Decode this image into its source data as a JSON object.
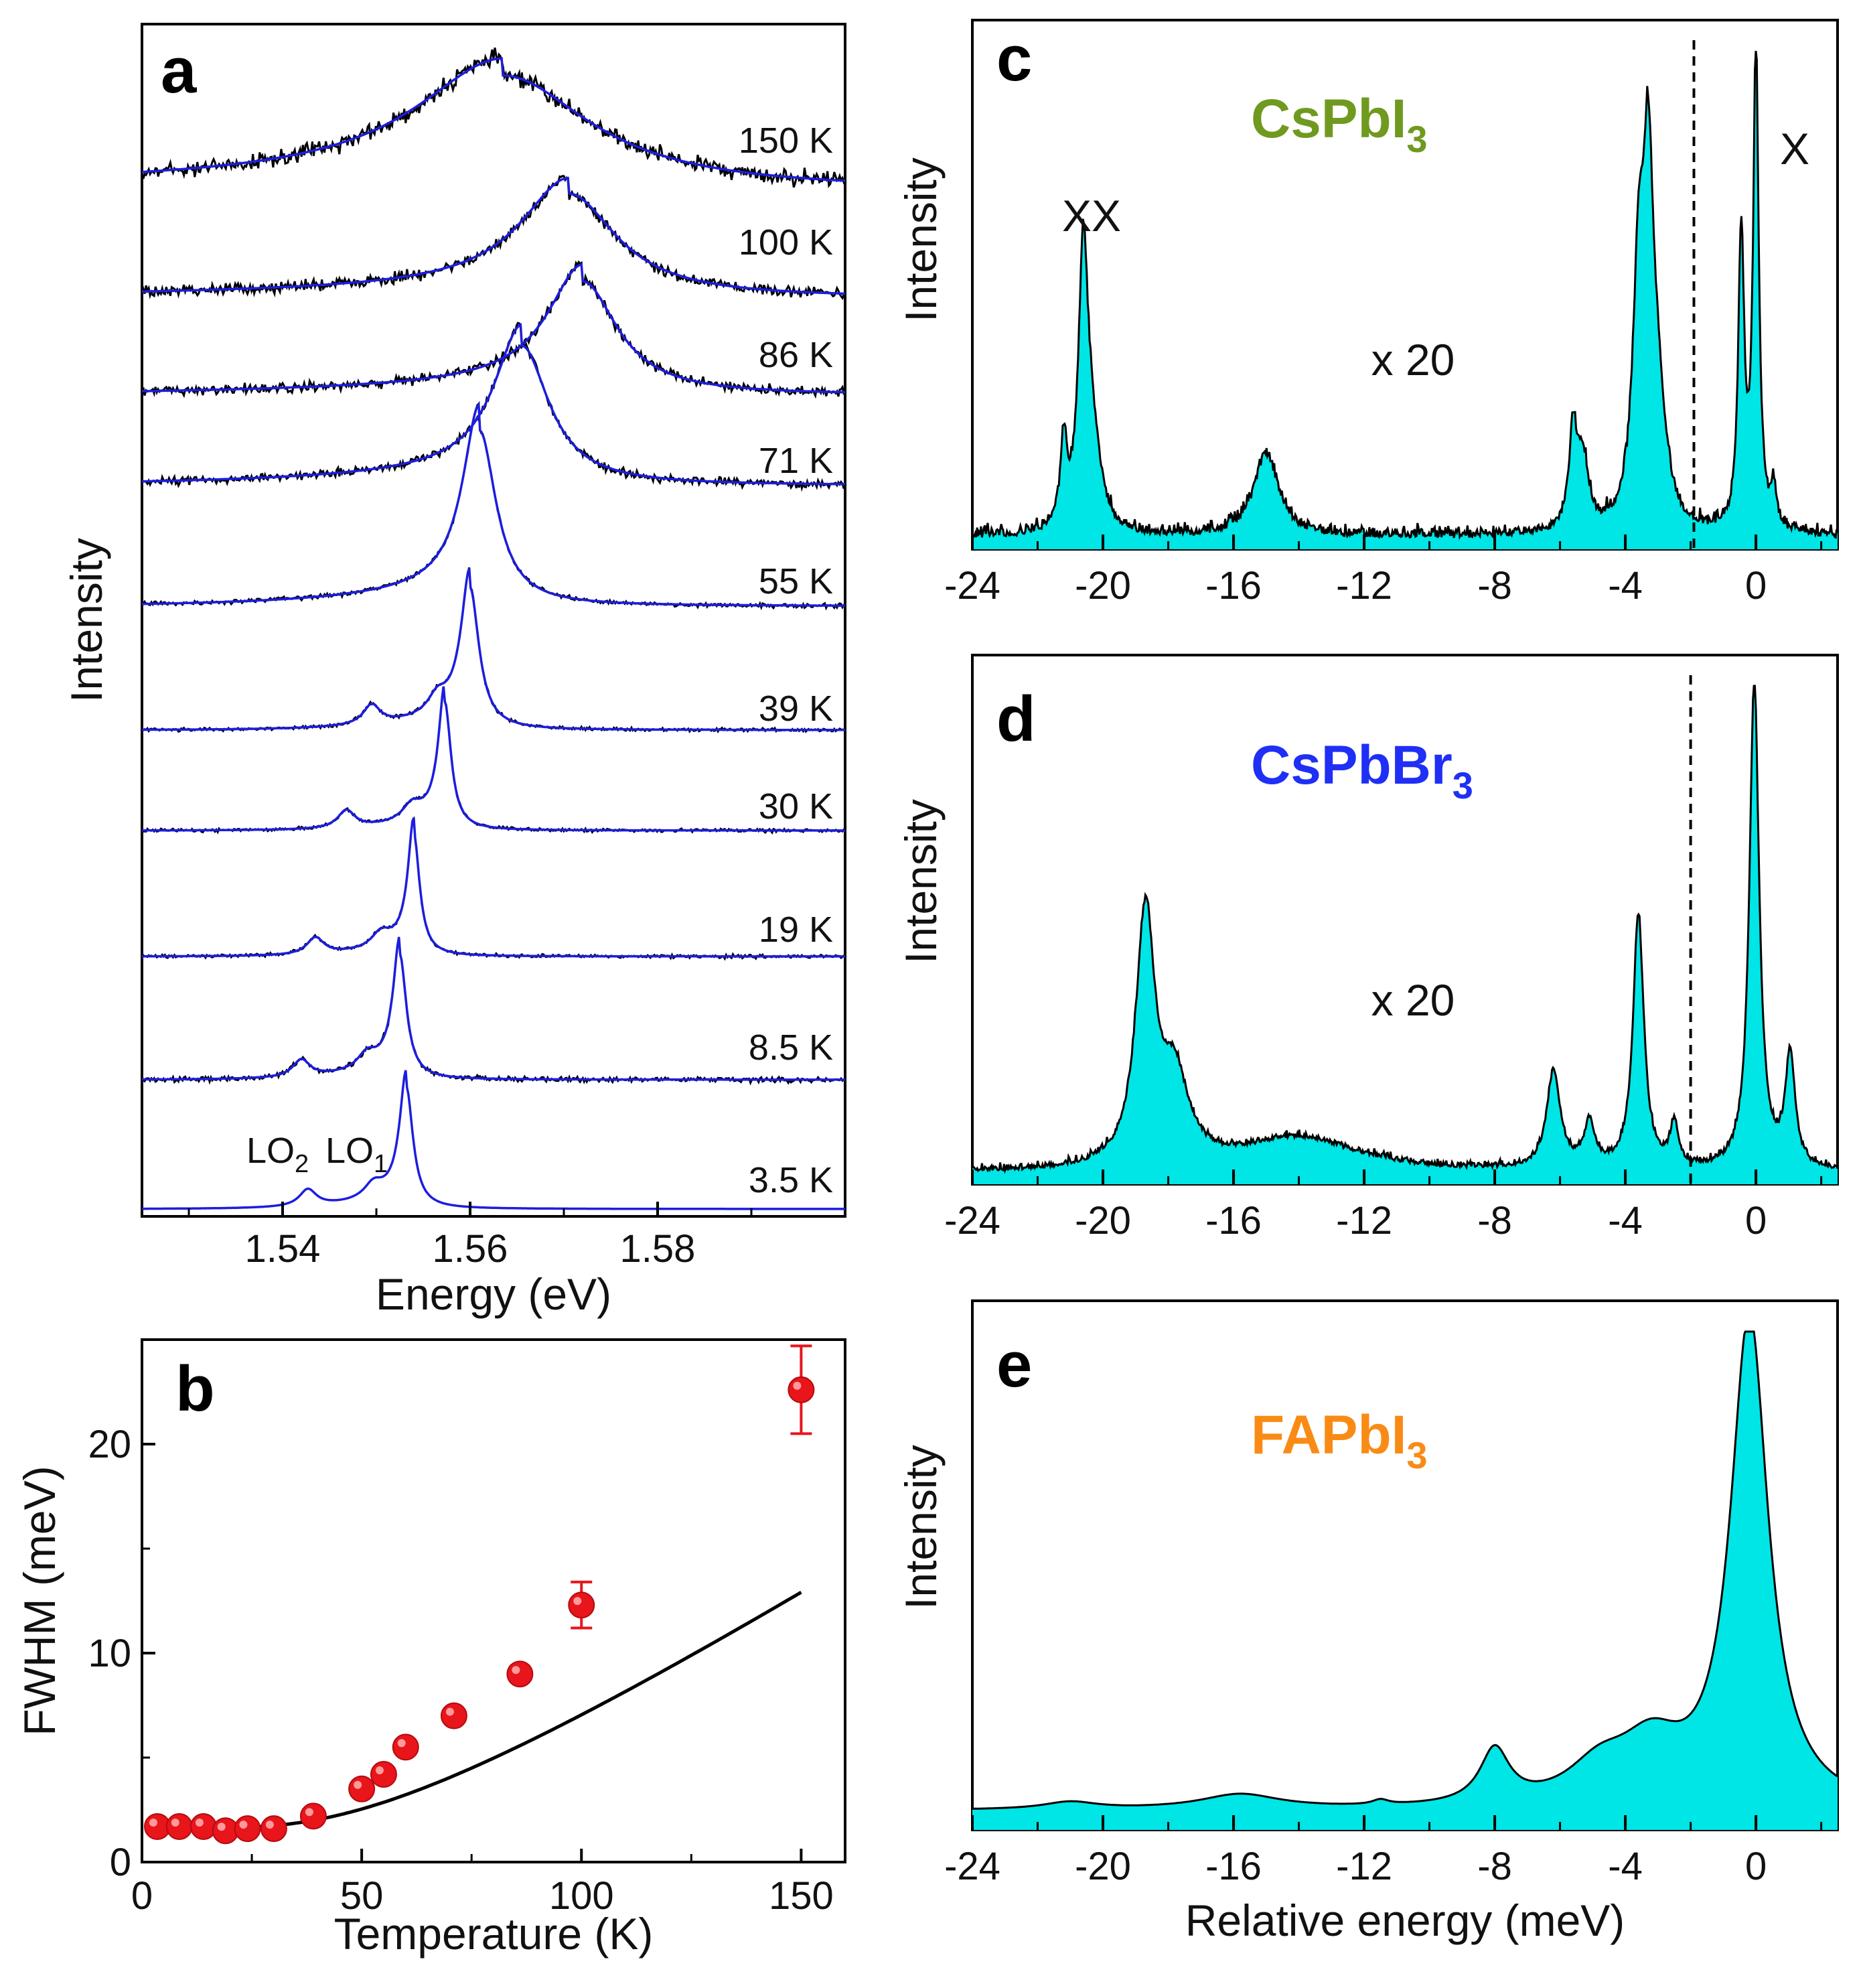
{
  "chart_data": [
    {
      "panel": "a",
      "type": "line",
      "xlabel": "Energy (eV)",
      "ylabel": "Intensity",
      "xlim": [
        1.525,
        1.6
      ],
      "xticks": [
        "1.54",
        "1.56",
        "1.58"
      ],
      "xtick_values": [
        1.54,
        1.56,
        1.58
      ],
      "series_note": "black = measured spectrum, blue = fit",
      "spectra": [
        {
          "label": "150 K",
          "peak_eV": 1.5635,
          "fwhm_eV": 0.0226,
          "amp": 0.82,
          "noise": 0.1
        },
        {
          "label": "100 K",
          "peak_eV": 1.5705,
          "fwhm_eV": 0.0124,
          "amp": 0.78,
          "noise": 0.07
        },
        {
          "label": "86 K",
          "peak_eV": 1.572,
          "fwhm_eV": 0.009,
          "amp": 0.85,
          "noise": 0.06
        },
        {
          "label": "71 K",
          "peak_eV": 1.5655,
          "fwhm_eV": 0.0071,
          "amp": 0.95,
          "noise": 0.05
        },
        {
          "label": "55 K",
          "peak_eV": 1.561,
          "fwhm_eV": 0.0043,
          "amp": 1.05,
          "noise": 0.025
        },
        {
          "label": "39 K",
          "peak_eV": 1.56,
          "fwhm_eV": 0.0023,
          "amp": 1.0,
          "noise": 0.02
        },
        {
          "label": "30 K",
          "peak_eV": 1.5573,
          "fwhm_eV": 0.0016,
          "amp": 0.95,
          "noise": 0.02
        },
        {
          "label": "19 K",
          "peak_eV": 1.554,
          "fwhm_eV": 0.0015,
          "amp": 1.0,
          "noise": 0.02
        },
        {
          "label": "8.5 K",
          "peak_eV": 1.5525,
          "fwhm_eV": 0.0017,
          "amp": 1.0,
          "noise": 0.03
        },
        {
          "label": "3.5 K",
          "peak_eV": 1.5532,
          "fwhm_eV": 0.0017,
          "amp": 1.0,
          "noise": 0.0
        }
      ],
      "annotations": {
        "lo2": "LO",
        "lo2_sub": "2",
        "lo1": "LO",
        "lo1_sub": "1"
      }
    },
    {
      "panel": "b",
      "type": "scatter",
      "xlabel": "Temperature (K)",
      "ylabel": "FWHM (meV)",
      "xlim": [
        0,
        160
      ],
      "ylim": [
        0,
        25
      ],
      "xticks": [
        "0",
        "50",
        "100",
        "150"
      ],
      "yticks": [
        "0",
        "10",
        "20"
      ],
      "x": [
        3.5,
        8.5,
        14,
        19,
        24,
        30,
        39,
        50,
        55,
        60,
        71,
        86,
        100,
        150
      ],
      "y": [
        1.7,
        1.7,
        1.7,
        1.5,
        1.6,
        1.6,
        2.2,
        3.5,
        4.2,
        5.5,
        7.0,
        9.0,
        12.3,
        22.6
      ],
      "error": [
        0,
        0,
        0,
        0,
        0,
        0,
        0,
        0,
        0,
        0,
        0,
        0,
        1.1,
        2.1
      ],
      "fit": {
        "gamma0": 1.65,
        "gammaLO": 22.0,
        "ELO_meV": 14.0
      }
    },
    {
      "panel": "c",
      "type": "area",
      "compound": "CsPbI",
      "compound_sub": "3",
      "color": "#6f9a1f",
      "xlabel": "",
      "ylabel": "Intensity",
      "xlim": [
        -24,
        2.5
      ],
      "xticks": [
        "-24",
        "-20",
        "-16",
        "-12",
        "-8",
        "-4",
        "0"
      ],
      "xtick_values": [
        -24,
        -20,
        -16,
        -12,
        -8,
        -4,
        0
      ],
      "multiplier_text": "x 20",
      "divider_at": -1.9,
      "labels": {
        "xx": "XX",
        "x": "X"
      },
      "peaks": [
        {
          "pos": -21.2,
          "w": 0.12,
          "h": 0.17
        },
        {
          "pos": -20.6,
          "w": 0.18,
          "h": 0.56
        },
        {
          "pos": -20.3,
          "w": 0.3,
          "h": 0.15
        },
        {
          "pos": -15.0,
          "w": 0.45,
          "h": 0.17
        },
        {
          "pos": -5.6,
          "w": 0.15,
          "h": 0.2
        },
        {
          "pos": -5.3,
          "w": 0.2,
          "h": 0.14
        },
        {
          "pos": -3.6,
          "w": 0.2,
          "h": 0.45
        },
        {
          "pos": -3.3,
          "w": 0.2,
          "h": 0.66
        },
        {
          "pos": -3.0,
          "w": 0.3,
          "h": 0.2
        },
        {
          "pos": -0.45,
          "w": 0.11,
          "h": 0.6
        },
        {
          "pos": 0.0,
          "w": 0.1,
          "h": 1.0
        },
        {
          "pos": 0.55,
          "w": 0.1,
          "h": 0.08
        }
      ],
      "noise": 0.035
    },
    {
      "panel": "d",
      "type": "area",
      "compound": "CsPbBr",
      "compound_sub": "3",
      "color": "#1f2ff5",
      "xlabel": "",
      "ylabel": "Intensity",
      "xlim": [
        -24,
        2.5
      ],
      "xticks": [
        "-24",
        "-20",
        "-16",
        "-12",
        "-8",
        "-4",
        "0"
      ],
      "xtick_values": [
        -24,
        -20,
        -16,
        -12,
        -8,
        -4,
        0
      ],
      "multiplier_text": "x 20",
      "divider_at": -2.0,
      "peaks": [
        {
          "pos": -18.7,
          "w": 0.35,
          "h": 0.51
        },
        {
          "pos": -17.8,
          "w": 0.5,
          "h": 0.17
        },
        {
          "pos": -14.0,
          "w": 2.2,
          "h": 0.07
        },
        {
          "pos": -6.2,
          "w": 0.25,
          "h": 0.2
        },
        {
          "pos": -5.1,
          "w": 0.2,
          "h": 0.09
        },
        {
          "pos": -3.6,
          "w": 0.2,
          "h": 0.52
        },
        {
          "pos": -2.5,
          "w": 0.15,
          "h": 0.09
        },
        {
          "pos": -0.05,
          "w": 0.18,
          "h": 1.0
        },
        {
          "pos": 1.05,
          "w": 0.18,
          "h": 0.23
        }
      ],
      "noise": 0.02
    },
    {
      "panel": "e",
      "type": "area",
      "compound": "FAPbI",
      "compound_sub": "3",
      "color": "#f98b15",
      "xlabel": "Relative energy (meV)",
      "ylabel": "Intensity",
      "xlim": [
        -24,
        2.5
      ],
      "xticks": [
        "-24",
        "-20",
        "-16",
        "-12",
        "-8",
        "-4",
        "0"
      ],
      "xtick_values": [
        -24,
        -20,
        -16,
        -12,
        -8,
        -4,
        0
      ],
      "peaks": [
        {
          "pos": -0.2,
          "w": 0.7,
          "h": 1.0
        },
        {
          "pos": -3.2,
          "w": 1.2,
          "h": 0.11
        },
        {
          "pos": -4.8,
          "w": 1.2,
          "h": 0.07
        },
        {
          "pos": -8.0,
          "w": 0.55,
          "h": 0.11
        },
        {
          "pos": -15.8,
          "w": 1.5,
          "h": 0.03
        },
        {
          "pos": -21.0,
          "w": 1.0,
          "h": 0.015
        },
        {
          "pos": -11.5,
          "w": 0.3,
          "h": 0.01
        }
      ],
      "baseline": 0.02,
      "noise": 0.0
    }
  ]
}
